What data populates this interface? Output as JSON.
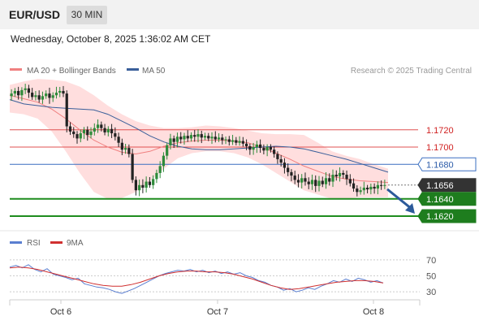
{
  "header": {
    "symbol": "EUR/USD",
    "timeframe": "30 MIN"
  },
  "timestamp": "Wednesday, October 8, 2025 1:36:02 AM CET",
  "legend": [
    {
      "label": "MA 20 + Bollinger Bands",
      "color": "#f08080"
    },
    {
      "label": "MA 50",
      "color": "#3a5f9a"
    }
  ],
  "copyright": "Research © 2025 Trading Central",
  "colors": {
    "up": "#2e8b3a",
    "down": "#222222",
    "band": "#ffd6d6",
    "ma20": "#f08080",
    "ma50": "#3a5f9a",
    "resistance": "#e05050",
    "support": "#1e8c1e",
    "pivot": "#3a6fc0",
    "current": "#333333",
    "arrow": "#2c5a9a",
    "rsi": "#5a7ed0",
    "rsi_ma": "#d03030"
  },
  "chart_data": [
    {
      "type": "candlestick",
      "title": "EUR/USD 30 MIN",
      "price_range": [
        1.1605,
        1.178
      ],
      "x_ticks": [
        "Oct 6",
        "Oct 7",
        "Oct 8"
      ],
      "levels": [
        {
          "value": 1.172,
          "label": "1.1720",
          "kind": "resistance"
        },
        {
          "value": 1.17,
          "label": "1.1700",
          "kind": "resistance"
        },
        {
          "value": 1.168,
          "label": "1.1680",
          "kind": "pivot"
        },
        {
          "value": 1.1656,
          "label": "1.1656",
          "kind": "current"
        },
        {
          "value": 1.164,
          "label": "1.1640",
          "kind": "support"
        },
        {
          "value": 1.162,
          "label": "1.1620",
          "kind": "support"
        }
      ],
      "forecast": {
        "from": 1.1655,
        "to": 1.1621,
        "direction": "down"
      },
      "close_path": [
        1.1762,
        1.1765,
        1.176,
        1.1766,
        1.1768,
        1.1763,
        1.1758,
        1.176,
        1.1755,
        1.1759,
        1.1762,
        1.1757,
        1.176,
        1.1763,
        1.1765,
        1.1762,
        1.1724,
        1.1718,
        1.1715,
        1.171,
        1.1716,
        1.172,
        1.1714,
        1.1718,
        1.1722,
        1.1726,
        1.1722,
        1.1717,
        1.1721,
        1.1716,
        1.1712,
        1.1705,
        1.1697,
        1.1699,
        1.1692,
        1.1662,
        1.165,
        1.1656,
        1.1653,
        1.166,
        1.1656,
        1.1663,
        1.167,
        1.1678,
        1.169,
        1.1702,
        1.171,
        1.1706,
        1.1712,
        1.1709,
        1.1713,
        1.171,
        1.1714,
        1.1712,
        1.1715,
        1.1711,
        1.1713,
        1.171,
        1.1712,
        1.1709,
        1.1711,
        1.1708,
        1.1709,
        1.1706,
        1.1708,
        1.1705,
        1.1707,
        1.1704,
        1.1701,
        1.1697,
        1.17,
        1.1703,
        1.1699,
        1.1696,
        1.17,
        1.1697,
        1.1692,
        1.1686,
        1.1682,
        1.1676,
        1.1671,
        1.1667,
        1.1662,
        1.1659,
        1.1664,
        1.166,
        1.1657,
        1.1662,
        1.1655,
        1.1661,
        1.1657,
        1.1664,
        1.166,
        1.1668,
        1.1666,
        1.167,
        1.1668,
        1.1663,
        1.1658,
        1.1652,
        1.1648,
        1.165,
        1.1653,
        1.1651,
        1.1654,
        1.1652,
        1.1656,
        1.1655,
        1.1656
      ],
      "ma50_path": [
        1.1755,
        1.175,
        1.1748,
        1.1746,
        1.1745,
        1.1744,
        1.1743,
        1.1738,
        1.173,
        1.1722,
        1.1713,
        1.1706,
        1.1701,
        1.1698,
        1.1697,
        1.1697,
        1.1698,
        1.1699,
        1.17,
        1.1701,
        1.17,
        1.1698,
        1.1694,
        1.169,
        1.1686,
        1.1681,
        1.1676,
        1.1671
      ],
      "ma20_path": [
        1.176,
        1.1756,
        1.1752,
        1.1744,
        1.1733,
        1.172,
        1.1708,
        1.17,
        1.1694,
        1.1692,
        1.1695,
        1.1701,
        1.1705,
        1.1707,
        1.1708,
        1.1708,
        1.1707,
        1.1705,
        1.17,
        1.1693,
        1.1686,
        1.1678,
        1.1672,
        1.1666,
        1.1663,
        1.1661,
        1.166,
        1.1659
      ],
      "bb_upper": [
        1.1772,
        1.1776,
        1.1779,
        1.1778,
        1.1776,
        1.177,
        1.176,
        1.1748,
        1.1738,
        1.173,
        1.1725,
        1.1722,
        1.1722,
        1.1723,
        1.1725,
        1.1724,
        1.1722,
        1.1719,
        1.1716,
        1.1715,
        1.1715,
        1.1714,
        1.1705,
        1.1695,
        1.169,
        1.1686,
        1.168,
        1.1675
      ],
      "bb_lower": [
        1.174,
        1.1738,
        1.1733,
        1.1718,
        1.1695,
        1.167,
        1.1648,
        1.164,
        1.1641,
        1.1648,
        1.166,
        1.1675,
        1.1687,
        1.1693,
        1.1695,
        1.1695,
        1.1693,
        1.1688,
        1.168,
        1.167,
        1.166,
        1.165,
        1.1645,
        1.164,
        1.164,
        1.1642,
        1.1642,
        1.1642
      ]
    },
    {
      "type": "line",
      "title": "RSI",
      "series_names": [
        "RSI",
        "9MA"
      ],
      "y_range": [
        22,
        78
      ],
      "y_ticks": [
        "70",
        "50",
        "30"
      ],
      "rsi": [
        61,
        63,
        60,
        64,
        58,
        55,
        59,
        52,
        50,
        48,
        45,
        47,
        40,
        38,
        36,
        35,
        33,
        30,
        28,
        31,
        34,
        38,
        42,
        46,
        50,
        53,
        55,
        57,
        56,
        58,
        55,
        57,
        54,
        56,
        53,
        55,
        52,
        54,
        50,
        48,
        44,
        42,
        38,
        36,
        32,
        34,
        30,
        32,
        35,
        33,
        37,
        40,
        44,
        42,
        46,
        43,
        47,
        45,
        42,
        44,
        41
      ],
      "rsi_ma": [
        60,
        61,
        60,
        58,
        55,
        52,
        49,
        46,
        43,
        40,
        38,
        37,
        37,
        39,
        42,
        46,
        50,
        53,
        55,
        56,
        56,
        55,
        55,
        54,
        52,
        49,
        46,
        42,
        38,
        35,
        33,
        34,
        36,
        38,
        40,
        42,
        43,
        44,
        44,
        43,
        41
      ]
    }
  ]
}
